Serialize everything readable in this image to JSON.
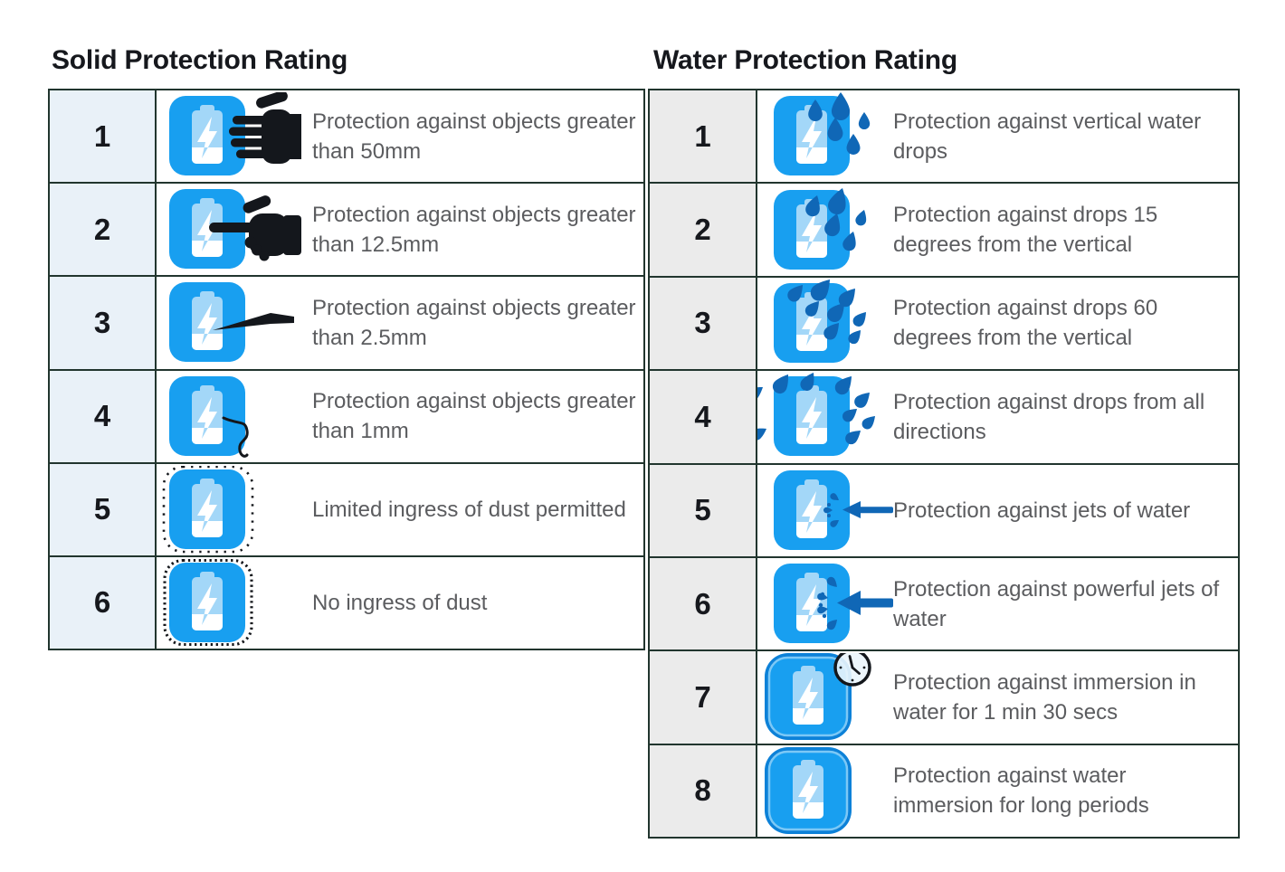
{
  "colors": {
    "border": "#21352e",
    "title_text": "#16181d",
    "number_text": "#16181d",
    "description_text": "#5b5c5f",
    "solid_number_bg": "#e9f1f8",
    "water_number_bg": "#ebebeb",
    "icon_blue": "#189ff0",
    "icon_blue_dark": "#0c81d8",
    "icon_blue_ring": "#7cc8f6",
    "battery_body_blue": "#a3d7f8",
    "drop_blue": "#1067b6",
    "silhouette_black": "#14171c",
    "white": "#ffffff"
  },
  "tables": [
    {
      "id": "solid",
      "title": "Solid Protection Rating",
      "rows": [
        {
          "rating": "1",
          "icon": "battery-hand-icon",
          "description": "Protection against objects greater than 50mm"
        },
        {
          "rating": "2",
          "icon": "battery-finger-icon",
          "description": "Protection against objects greater than 12.5mm"
        },
        {
          "rating": "3",
          "icon": "battery-probe-icon",
          "description": "Protection against objects greater than 2.5mm"
        },
        {
          "rating": "4",
          "icon": "battery-wire-icon",
          "description": "Protection against objects greater than 1mm"
        },
        {
          "rating": "5",
          "icon": "battery-dust-limited-icon",
          "description": "Limited ingress of dust permitted"
        },
        {
          "rating": "6",
          "icon": "battery-dust-sealed-icon",
          "description": "No ingress of dust"
        }
      ]
    },
    {
      "id": "water",
      "title": "Water Protection Rating",
      "rows": [
        {
          "rating": "1",
          "icon": "battery-vertical-drops-icon",
          "description": "Protection against vertical water drops"
        },
        {
          "rating": "2",
          "icon": "battery-drops-15-icon",
          "description": "Protection against drops 15 degrees from the vertical"
        },
        {
          "rating": "3",
          "icon": "battery-drops-60-icon",
          "description": "Protection against drops 60 degrees from the vertical"
        },
        {
          "rating": "4",
          "icon": "battery-drops-all-directions-icon",
          "description": "Protection against drops from all directions"
        },
        {
          "rating": "5",
          "icon": "battery-water-jet-icon",
          "description": "Protection against jets of water"
        },
        {
          "rating": "6",
          "icon": "battery-powerful-jet-icon",
          "description": "Protection against powerful jets of water"
        },
        {
          "rating": "7",
          "icon": "battery-timed-immersion-icon",
          "description": "Protection against immersion in water for 1 min 30 secs"
        },
        {
          "rating": "8",
          "icon": "battery-long-immersion-icon",
          "description": "Protection against water immersion for long periods"
        }
      ]
    }
  ]
}
